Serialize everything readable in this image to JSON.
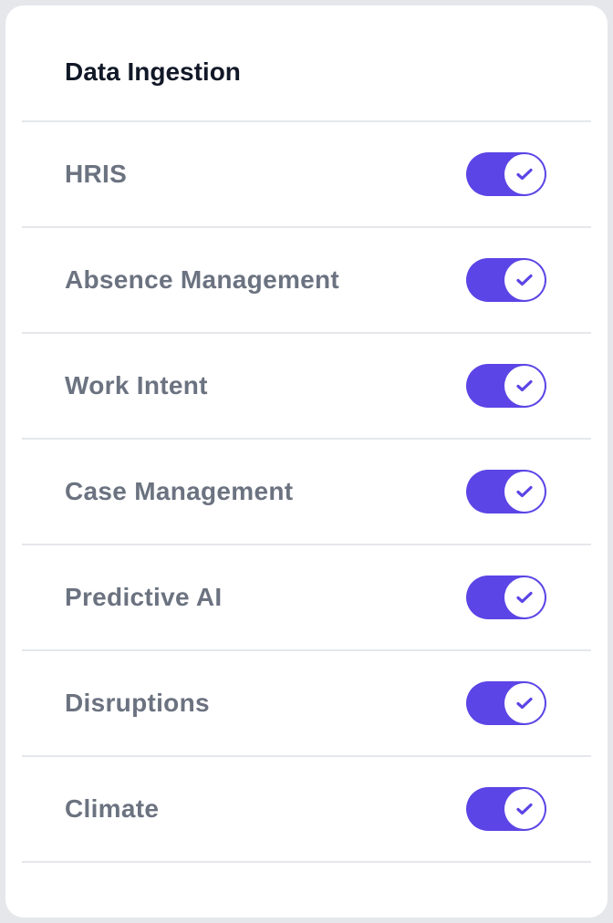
{
  "panel": {
    "title": "Data Ingestion",
    "accent_color": "#5b45e6",
    "items": [
      {
        "label": "HRIS",
        "enabled": true,
        "icon": "check-icon"
      },
      {
        "label": "Absence Management",
        "enabled": true,
        "icon": "check-icon"
      },
      {
        "label": "Work Intent",
        "enabled": true,
        "icon": "check-icon"
      },
      {
        "label": "Case Management",
        "enabled": true,
        "icon": "check-icon"
      },
      {
        "label": "Predictive AI",
        "enabled": true,
        "icon": "check-icon"
      },
      {
        "label": "Disruptions",
        "enabled": true,
        "icon": "check-icon"
      },
      {
        "label": "Climate",
        "enabled": true,
        "icon": "check-icon"
      }
    ]
  }
}
